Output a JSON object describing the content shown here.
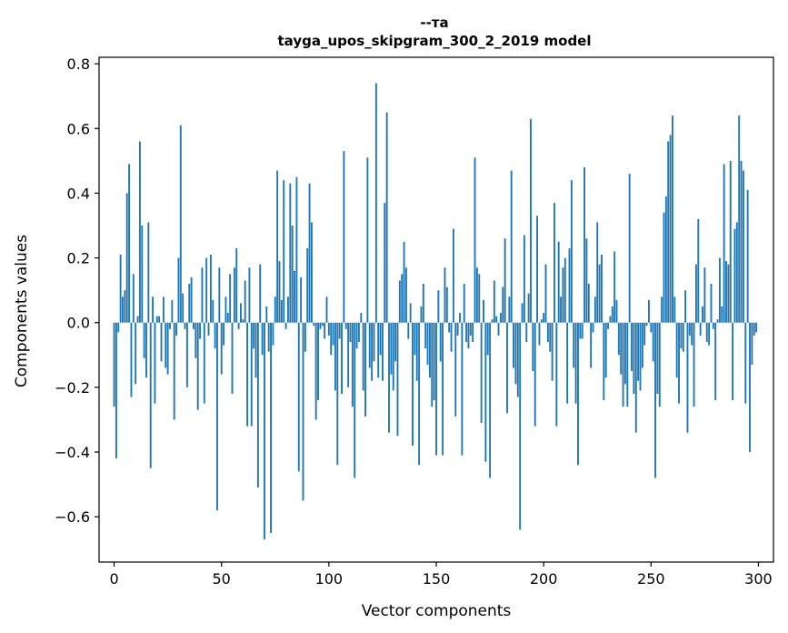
{
  "chart_data": {
    "type": "bar",
    "title": "--та",
    "subtitle": "tayga_upos_skipgram_300_2_2019 model",
    "xlabel": "Vector components",
    "ylabel": "Components values",
    "xlim": [
      -7,
      307
    ],
    "ylim": [
      -0.74,
      0.82
    ],
    "xticks": [
      0,
      50,
      100,
      150,
      200,
      250,
      300
    ],
    "xtick_labels": [
      "0",
      "50",
      "100",
      "150",
      "200",
      "250",
      "300"
    ],
    "yticks": [
      -0.6,
      -0.4,
      -0.2,
      0.0,
      0.2,
      0.4,
      0.6,
      0.8
    ],
    "ytick_labels": [
      "−0.6",
      "−0.4",
      "−0.2",
      "0.0",
      "0.2",
      "0.4",
      "0.6",
      "0.8"
    ],
    "grid": false,
    "bar_color": "#1f77b4",
    "x": [
      0,
      1,
      2,
      3,
      4,
      5,
      6,
      7,
      8,
      9,
      10,
      11,
      12,
      13,
      14,
      15,
      16,
      17,
      18,
      19,
      20,
      21,
      22,
      23,
      24,
      25,
      26,
      27,
      28,
      29,
      30,
      31,
      32,
      33,
      34,
      35,
      36,
      37,
      38,
      39,
      40,
      41,
      42,
      43,
      44,
      45,
      46,
      47,
      48,
      49,
      50,
      51,
      52,
      53,
      54,
      55,
      56,
      57,
      58,
      59,
      60,
      61,
      62,
      63,
      64,
      65,
      66,
      67,
      68,
      69,
      70,
      71,
      72,
      73,
      74,
      75,
      76,
      77,
      78,
      79,
      80,
      81,
      82,
      83,
      84,
      85,
      86,
      87,
      88,
      89,
      90,
      91,
      92,
      93,
      94,
      95,
      96,
      97,
      98,
      99,
      100,
      101,
      102,
      103,
      104,
      105,
      106,
      107,
      108,
      109,
      110,
      111,
      112,
      113,
      114,
      115,
      116,
      117,
      118,
      119,
      120,
      121,
      122,
      123,
      124,
      125,
      126,
      127,
      128,
      129,
      130,
      131,
      132,
      133,
      134,
      135,
      136,
      137,
      138,
      139,
      140,
      141,
      142,
      143,
      144,
      145,
      146,
      147,
      148,
      149,
      150,
      151,
      152,
      153,
      154,
      155,
      156,
      157,
      158,
      159,
      160,
      161,
      162,
      163,
      164,
      165,
      166,
      167,
      168,
      169,
      170,
      171,
      172,
      173,
      174,
      175,
      176,
      177,
      178,
      179,
      180,
      181,
      182,
      183,
      184,
      185,
      186,
      187,
      188,
      189,
      190,
      191,
      192,
      193,
      194,
      195,
      196,
      197,
      198,
      199,
      200,
      201,
      202,
      203,
      204,
      205,
      206,
      207,
      208,
      209,
      210,
      211,
      212,
      213,
      214,
      215,
      216,
      217,
      218,
      219,
      220,
      221,
      222,
      223,
      224,
      225,
      226,
      227,
      228,
      229,
      230,
      231,
      232,
      233,
      234,
      235,
      236,
      237,
      238,
      239,
      240,
      241,
      242,
      243,
      244,
      245,
      246,
      247,
      248,
      249,
      250,
      251,
      252,
      253,
      254,
      255,
      256,
      257,
      258,
      259,
      260,
      261,
      262,
      263,
      264,
      265,
      266,
      267,
      268,
      269,
      270,
      271,
      272,
      273,
      274,
      275,
      276,
      277,
      278,
      279,
      280,
      281,
      282,
      283,
      284,
      285,
      286,
      287,
      288,
      289,
      290,
      291,
      292,
      293,
      294,
      295,
      296,
      297,
      298,
      299
    ],
    "values": [
      -0.26,
      -0.42,
      -0.03,
      0.21,
      0.08,
      0.1,
      0.4,
      0.49,
      -0.23,
      0.15,
      -0.19,
      0.02,
      0.56,
      0.3,
      -0.11,
      -0.17,
      0.31,
      -0.45,
      0.08,
      -0.25,
      0.02,
      0.02,
      -0.12,
      0.08,
      -0.14,
      -0.16,
      -0.02,
      0.07,
      -0.3,
      -0.04,
      0.2,
      0.61,
      0.09,
      -0.02,
      -0.2,
      0.12,
      0.14,
      -0.02,
      -0.11,
      -0.27,
      -0.05,
      0.17,
      -0.25,
      0.2,
      -0.04,
      0.21,
      0.07,
      -0.08,
      -0.58,
      0.17,
      -0.16,
      -0.07,
      0.08,
      0.03,
      0.15,
      -0.22,
      0.17,
      0.23,
      -0.02,
      0.06,
      0.01,
      0.13,
      -0.32,
      0.17,
      -0.32,
      -0.08,
      -0.17,
      -0.51,
      0.18,
      -0.1,
      -0.67,
      0.05,
      -0.09,
      -0.65,
      -0.07,
      0.08,
      0.47,
      0.19,
      0.07,
      0.44,
      -0.02,
      0.08,
      0.43,
      0.3,
      0.16,
      0.45,
      -0.46,
      0.14,
      -0.55,
      -0.09,
      0.23,
      0.43,
      0.31,
      -0.01,
      -0.3,
      -0.24,
      -0.02,
      -0.01,
      -0.05,
      0.08,
      -0.04,
      -0.1,
      -0.07,
      -0.21,
      -0.44,
      -0.05,
      -0.22,
      0.53,
      -0.02,
      -0.2,
      -0.06,
      -0.26,
      -0.48,
      -0.08,
      -0.06,
      0.03,
      -0.21,
      -0.29,
      0.51,
      -0.14,
      -0.18,
      -0.12,
      0.74,
      -0.17,
      -0.1,
      -0.18,
      0.37,
      0.65,
      -0.34,
      -0.16,
      -0.21,
      -0.12,
      -0.35,
      0.13,
      0.15,
      0.25,
      0.17,
      -0.05,
      0.06,
      -0.38,
      -0.1,
      -0.18,
      -0.44,
      0.05,
      0.12,
      -0.08,
      -0.13,
      -0.17,
      -0.26,
      -0.24,
      -0.41,
      0.1,
      -0.12,
      -0.41,
      0.17,
      0.11,
      -0.03,
      -0.09,
      0.29,
      -0.29,
      -0.04,
      0.03,
      -0.41,
      0.12,
      -0.06,
      -0.08,
      -0.04,
      -0.06,
      0.51,
      0.17,
      0.15,
      -0.31,
      0.07,
      -0.43,
      -0.1,
      -0.48,
      0.01,
      0.13,
      0.02,
      -0.04,
      0.03,
      0.11,
      0.26,
      -0.28,
      0.08,
      0.47,
      -0.14,
      -0.19,
      -0.23,
      -0.64,
      0.06,
      0.27,
      -0.06,
      0.09,
      0.63,
      -0.15,
      -0.32,
      0.33,
      -0.07,
      0.01,
      0.03,
      0.18,
      -0.06,
      -0.09,
      -0.18,
      0.37,
      -0.32,
      0.25,
      0.08,
      0.17,
      0.2,
      -0.25,
      0.23,
      0.44,
      -0.14,
      -0.25,
      -0.44,
      -0.05,
      -0.05,
      0.48,
      0.26,
      0.12,
      -0.14,
      -0.03,
      0.08,
      0.31,
      0.18,
      0.21,
      -0.24,
      -0.17,
      -0.02,
      0.02,
      0.05,
      0.22,
      0.07,
      -0.1,
      -0.16,
      -0.26,
      -0.19,
      -0.26,
      0.46,
      -0.15,
      -0.22,
      -0.34,
      -0.18,
      -0.21,
      -0.14,
      -0.07,
      -0.01,
      0.07,
      -0.03,
      -0.12,
      -0.48,
      -0.22,
      -0.26,
      0.08,
      0.34,
      0.39,
      0.56,
      0.58,
      0.64,
      0.08,
      -0.17,
      -0.25,
      -0.08,
      -0.09,
      0.1,
      -0.34,
      -0.04,
      -0.07,
      -0.26,
      0.18,
      0.32,
      -0.04,
      0.05,
      0.17,
      -0.06,
      -0.07,
      0.12,
      -0.02,
      -0.24,
      0.01,
      0.2,
      0.05,
      0.49,
      0.19,
      0.18,
      0.5,
      -0.24,
      0.29,
      0.31,
      0.64,
      0.5,
      0.47,
      -0.25,
      0.41,
      -0.4,
      -0.13,
      -0.04,
      -0.03
    ]
  }
}
